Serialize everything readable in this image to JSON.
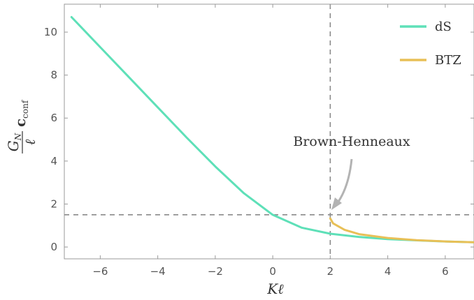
{
  "chart_data": {
    "type": "line",
    "title": "",
    "xlabel": "Kℓ",
    "ylabel": "G_N/ℓ c_conf",
    "xlim": [
      -7.25,
      7
    ],
    "ylim": [
      -0.55,
      11.3
    ],
    "grid": false,
    "x_ticks": [
      -6,
      -4,
      -2,
      0,
      2,
      4,
      6
    ],
    "x_tick_labels": [
      "−6",
      "−4",
      "−2",
      "0",
      "2",
      "4",
      "6"
    ],
    "y_ticks": [
      0,
      2,
      4,
      6,
      8,
      10
    ],
    "y_tick_labels": [
      "0",
      "2",
      "4",
      "6",
      "8",
      "10"
    ],
    "reference_lines": {
      "vertical_x": 2,
      "horizontal_y": 1.5
    },
    "legend": {
      "placement": "top-right"
    },
    "series": [
      {
        "name": "dS",
        "color": "#5ee0b8",
        "x": [
          -7,
          -6,
          -5,
          -4,
          -3,
          -2,
          -1,
          0,
          1,
          2,
          3,
          4,
          5,
          6,
          7
        ],
        "y": [
          10.7,
          9.3,
          7.9,
          6.5,
          5.1,
          3.75,
          2.5,
          1.5,
          0.9,
          0.62,
          0.47,
          0.37,
          0.31,
          0.26,
          0.22
        ]
      },
      {
        "name": "BTZ",
        "color": "#e8c057",
        "x": [
          2,
          2.1,
          2.5,
          3,
          4,
          5,
          6,
          7
        ],
        "y": [
          1.33,
          1.1,
          0.8,
          0.6,
          0.42,
          0.32,
          0.26,
          0.22
        ]
      }
    ],
    "annotations": [
      {
        "text": "Brown-Henneaux",
        "points_to": {
          "x": 2,
          "y": 1.5
        }
      }
    ]
  }
}
